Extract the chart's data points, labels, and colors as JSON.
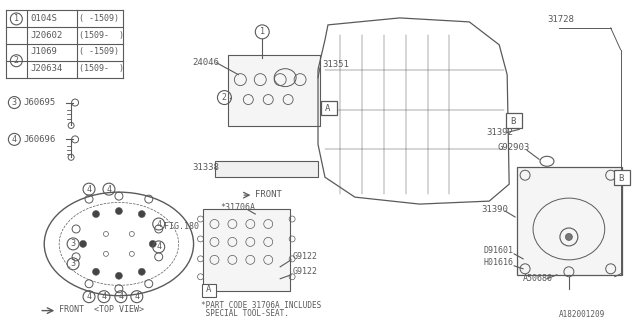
{
  "bg_color": "#ffffff",
  "line_color": "#5a5a5a",
  "text_color": "#5a5a5a",
  "fig_size": [
    6.4,
    3.2
  ],
  "dpi": 100,
  "table_parts": [
    {
      "num": "0104S",
      "range": "( -1509)"
    },
    {
      "num": "J20602",
      "range": "(1509-  )"
    },
    {
      "num": "J1069",
      "range": "( -1509)"
    },
    {
      "num": "J20634",
      "range": "(1509-  )"
    }
  ],
  "bolt_labels": [
    {
      "id": "3",
      "part": "J60695"
    },
    {
      "id": "4",
      "part": "J60696"
    }
  ],
  "watermark": "A182001209",
  "note_line1": "*PART CODE 31706A INCLUDES",
  "note_line2": " SPECIAL TOOL-SEAT."
}
